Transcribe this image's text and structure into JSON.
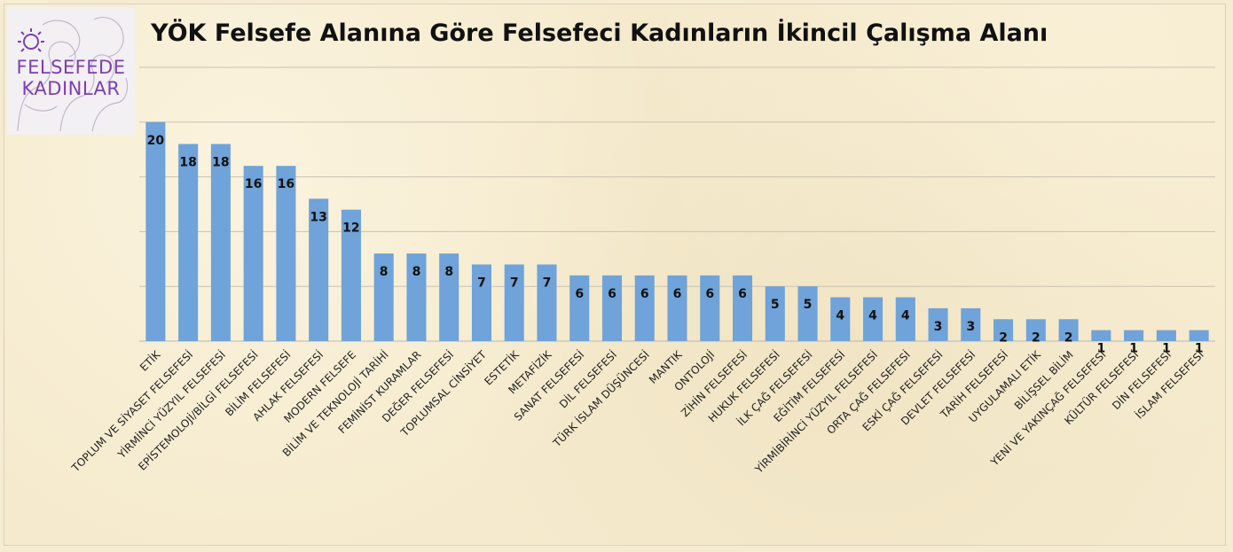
{
  "title": "YÖK Felsefe Alanına Göre Felsefeci Kadınların İkincil Çalışma Alanı",
  "logo": {
    "line1": "FELSEFEDE",
    "line2": "KADINLAR"
  },
  "colors": {
    "bar": "#6fa3d9",
    "grid": "#c9c2b2",
    "logo_text": "#7d3fb0"
  },
  "chart_data": {
    "type": "bar",
    "title": "YÖK Felsefe Alanına Göre Felsefeci Kadınların İkincil Çalışma Alanı",
    "xlabel": "",
    "ylabel": "",
    "ylim": [
      0,
      25
    ],
    "grid": true,
    "categories": [
      "ETİK",
      "TOPLUM VE SİYASET FELSEFESİ",
      "YİRMİNCİ YÜZYIL FELSEFESİ",
      "EPİSTEMOLOJİ/BİLGİ FELSEFESİ",
      "BİLİM FELSEFESİ",
      "AHLAK FELSEFESİ",
      "MODERN FELSEFE",
      "BİLİM VE TEKNOLOJİ TARİHİ",
      "FEMİNİST KURAMLAR",
      "DEĞER FELSEFESİ",
      "TOPLUMSAL CİNSİYET",
      "ESTETİK",
      "METAFİZİK",
      "SANAT FELSEFESİ",
      "DİL FELSEFESİ",
      "TÜRK İSLAM DÜŞÜNCESİ",
      "MANTIK",
      "ONTOLOJİ",
      "ZİHİN FELSEFESİ",
      "HUKUK FELSEFESİ",
      "İLK ÇAĞ FELSEFESİ",
      "EĞİTİM FELSEFESİ",
      "YİRMİBİRİNCİ YÜZYIL FELSEFESİ",
      "ORTA ÇAĞ FELSEFESİ",
      "ESKİ ÇAĞ FELSEFESİ",
      "DEVLET FELSEFESİ",
      "TARİH FELSEFESİ",
      "UYGULAMALI ETİK",
      "BİLİŞSEL BİLİM",
      "YENİ VE YAKINÇAĞ FELSEFESİ",
      "KÜLTÜR FELSEFESİ",
      "DİN FELSEFESİ",
      "İSLAM FELSEFESİ"
    ],
    "values": [
      20,
      18,
      18,
      16,
      16,
      13,
      12,
      8,
      8,
      8,
      7,
      7,
      7,
      6,
      6,
      6,
      6,
      6,
      6,
      5,
      5,
      4,
      4,
      4,
      3,
      3,
      2,
      2,
      2,
      1,
      1,
      1,
      1
    ]
  }
}
